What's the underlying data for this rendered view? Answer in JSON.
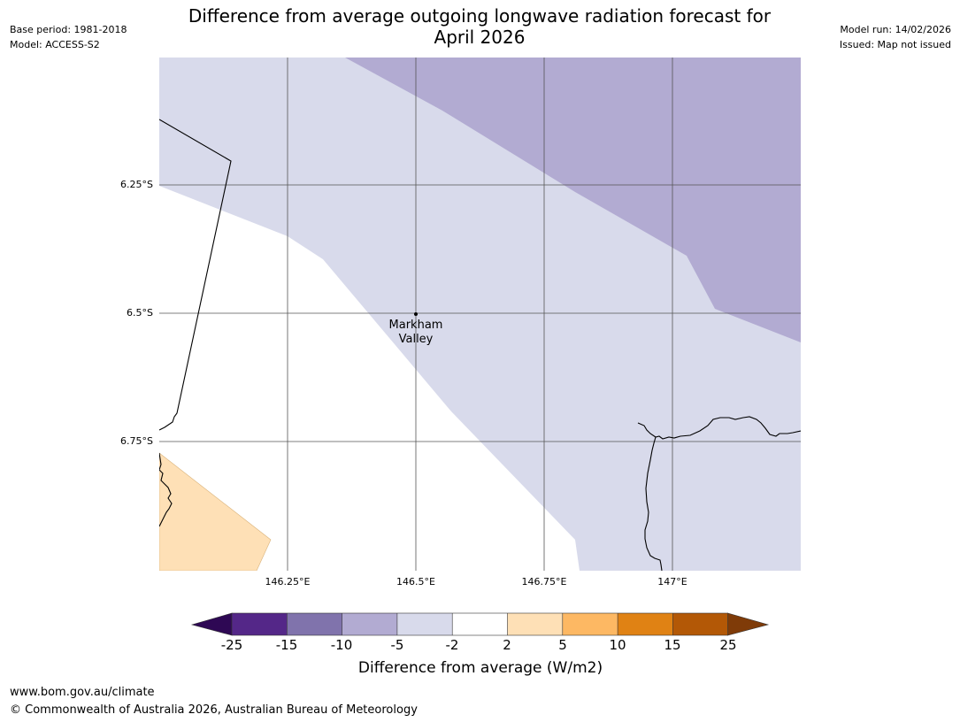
{
  "header": {
    "base_period": "Base period: 1981-2018",
    "model": "Model: ACCESS-S2",
    "model_run": "Model run: 14/02/2026",
    "issued": "Issued: Map not issued",
    "title_line1": "Difference from average outgoing longwave radiation forecast for",
    "title_line2": "April 2026"
  },
  "map": {
    "lat_labels": [
      "6.25°S",
      "6.5°S",
      "6.75°S"
    ],
    "lon_labels": [
      "146.25°E",
      "146.5°E",
      "146.75°E",
      "147°E"
    ],
    "town": {
      "name_line1": "Markham",
      "name_line2": "Valley"
    }
  },
  "colorbar": {
    "ticks": [
      "-25",
      "-15",
      "-10",
      "-5",
      "-2",
      "2",
      "5",
      "10",
      "15",
      "25"
    ],
    "colors": {
      "lt_m25": "#2e0854",
      "m25_m15": "#542788",
      "m15_m10": "#8073ac",
      "m10_m5": "#b2abd2",
      "m5_m2": "#d8daeb",
      "m2_2": "#ffffff",
      "2_5": "#fee0b6",
      "5_10": "#fdb863",
      "10_15": "#e08214",
      "15_25": "#b35806",
      "gt_25": "#7f3b08"
    },
    "label": "Difference from average (W/m2)"
  },
  "footer": {
    "url": "www.bom.gov.au/climate",
    "copyright": "© Commonwealth of Australia 2026, Australian Bureau of Meteorology"
  }
}
